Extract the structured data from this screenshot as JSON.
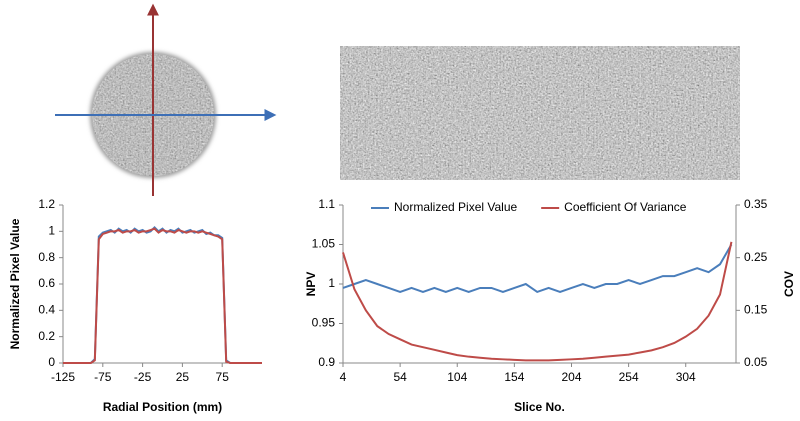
{
  "chart_data": [
    {
      "type": "line",
      "xlabel": "Radial Position (mm)",
      "ylabel": "Normalized Pixel Value",
      "xlim": [
        -125,
        125
      ],
      "xticks": [
        -125,
        -75,
        -25,
        25,
        75
      ],
      "ylim": [
        0,
        1.2
      ],
      "yticks": [
        0,
        0.2,
        0.4,
        0.6,
        0.8,
        1,
        1.2
      ],
      "x": [
        -125,
        -120,
        -115,
        -110,
        -105,
        -100,
        -95,
        -90,
        -85,
        -80,
        -75,
        -70,
        -65,
        -60,
        -55,
        -50,
        -45,
        -40,
        -35,
        -30,
        -25,
        -20,
        -15,
        -10,
        -5,
        0,
        5,
        10,
        15,
        20,
        25,
        30,
        35,
        40,
        45,
        50,
        55,
        60,
        65,
        70,
        75,
        80,
        85,
        90,
        95,
        100,
        105,
        110,
        115,
        120,
        125
      ],
      "series": [
        {
          "color": "#4a7ebb",
          "values": [
            0,
            0,
            0,
            0,
            0,
            0,
            0,
            0,
            0.03,
            0.96,
            0.99,
            1.0,
            1.01,
            0.99,
            1.02,
            1.0,
            1.01,
            0.99,
            1.02,
            1.0,
            1.01,
            0.99,
            1.0,
            1.03,
            1.0,
            1.02,
            0.99,
            1.01,
            1.0,
            1.02,
            0.99,
            1.0,
            1.01,
            0.99,
            1.0,
            1.01,
            0.98,
            0.99,
            0.97,
            0.97,
            0.95,
            0.02,
            0,
            0,
            0,
            0,
            0,
            0,
            0,
            0,
            0
          ]
        },
        {
          "color": "#be4b48",
          "values": [
            0,
            0,
            0,
            0,
            0,
            0,
            0,
            0,
            0.02,
            0.94,
            0.98,
            0.99,
            1.0,
            1.0,
            1.01,
            0.99,
            1.0,
            1.0,
            1.01,
            0.99,
            1.0,
            1.0,
            1.01,
            1.02,
            0.99,
            1.01,
            1.0,
            1.0,
            0.99,
            1.01,
            1.0,
            0.99,
            1.0,
            1.0,
            0.99,
            1.0,
            0.99,
            0.98,
            0.97,
            0.96,
            0.94,
            0.01,
            0,
            0,
            0,
            0,
            0,
            0,
            0,
            0,
            0
          ]
        }
      ]
    },
    {
      "type": "line",
      "xlabel": "Slice No.",
      "ylabel": "NPV",
      "y2label": "COV",
      "xlim": [
        4,
        348
      ],
      "xticks": [
        4,
        54,
        104,
        154,
        204,
        254,
        304
      ],
      "ylim": [
        0.9,
        1.1
      ],
      "yticks": [
        0.9,
        0.95,
        1,
        1.05,
        1.1
      ],
      "y2lim": [
        0.05,
        0.35
      ],
      "y2ticks": [
        0.05,
        0.15,
        0.25,
        0.35
      ],
      "legend": "top",
      "x": [
        4,
        14,
        24,
        34,
        44,
        54,
        64,
        74,
        84,
        94,
        104,
        114,
        124,
        134,
        144,
        154,
        164,
        174,
        184,
        194,
        204,
        214,
        224,
        234,
        244,
        254,
        264,
        274,
        284,
        294,
        304,
        314,
        324,
        334,
        344
      ],
      "series": [
        {
          "name": "Normalized Pixel Value",
          "color": "#4a7ebb",
          "values": [
            0.995,
            1.0,
            1.005,
            1.0,
            0.995,
            0.99,
            0.995,
            0.99,
            0.995,
            0.99,
            0.995,
            0.99,
            0.995,
            0.995,
            0.99,
            0.995,
            1.0,
            0.99,
            0.995,
            0.99,
            0.995,
            1.0,
            0.995,
            1.0,
            1.0,
            1.005,
            1.0,
            1.005,
            1.01,
            1.01,
            1.015,
            1.02,
            1.015,
            1.025,
            1.05
          ]
        },
        {
          "name": "Coefficient Of Variance",
          "color": "#be4b48",
          "axis": "y2",
          "values": [
            0.26,
            0.19,
            0.15,
            0.12,
            0.105,
            0.095,
            0.085,
            0.08,
            0.075,
            0.07,
            0.065,
            0.062,
            0.06,
            0.058,
            0.057,
            0.056,
            0.055,
            0.055,
            0.055,
            0.056,
            0.057,
            0.058,
            0.06,
            0.062,
            0.064,
            0.066,
            0.07,
            0.074,
            0.08,
            0.088,
            0.1,
            0.115,
            0.14,
            0.18,
            0.28
          ]
        }
      ]
    }
  ]
}
